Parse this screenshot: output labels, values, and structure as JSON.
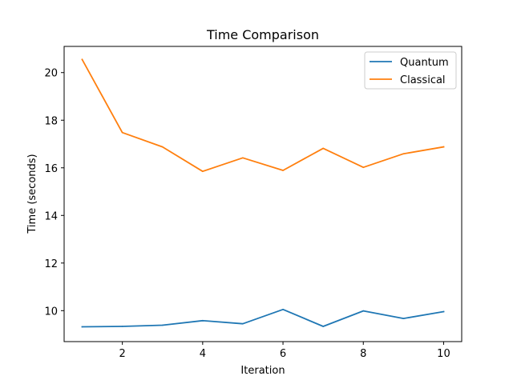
{
  "chart_data": {
    "type": "line",
    "title": "Time Comparison",
    "xlabel": "Iteration",
    "ylabel": "Time (seconds)",
    "x": [
      1,
      2,
      3,
      4,
      5,
      6,
      7,
      8,
      9,
      10
    ],
    "xlim": [
      0.55,
      10.45
    ],
    "ylim": [
      8.7,
      21.1
    ],
    "xticks": [
      2,
      4,
      6,
      8,
      10
    ],
    "yticks": [
      10,
      12,
      14,
      16,
      18,
      20
    ],
    "grid": false,
    "legend_position": "top-right",
    "series": [
      {
        "name": "Quantum",
        "color": "#1f77b4",
        "values": [
          9.32,
          9.34,
          9.39,
          9.58,
          9.45,
          10.05,
          9.34,
          9.99,
          9.67,
          9.96
        ]
      },
      {
        "name": "Classical",
        "color": "#ff7f0e",
        "values": [
          20.55,
          17.48,
          16.88,
          15.85,
          16.42,
          15.89,
          16.82,
          16.02,
          16.59,
          16.88
        ]
      }
    ]
  }
}
